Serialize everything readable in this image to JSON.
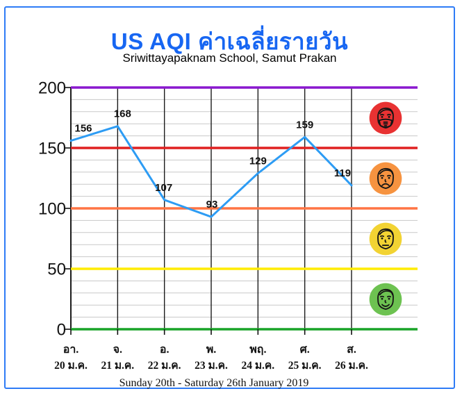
{
  "chart_data": {
    "type": "line",
    "title": "US AQI ค่าเฉลี่ยรายวัน",
    "subtitle": "Sriwittayapaknam School, Samut Prakan",
    "caption": "Sunday 20th - Saturday 26th January 2019",
    "x_day_labels": [
      "อา.",
      "จ.",
      "อ.",
      "พ.",
      "พฤ.",
      "ศ.",
      "ส."
    ],
    "x_date_labels": [
      "20 ม.ค.",
      "21 ม.ค.",
      "22 ม.ค.",
      "23 ม.ค.",
      "24 ม.ค.",
      "25 ม.ค.",
      "26 ม.ค."
    ],
    "values": [
      156,
      168,
      107,
      93,
      129,
      159,
      119
    ],
    "ylim": [
      0,
      200
    ],
    "y_ticks": [
      0,
      50,
      100,
      150,
      200
    ],
    "minor_gridline_step": 10,
    "grid": true,
    "legend_position": "right",
    "line_color": "#2d9cf4",
    "thresholds": [
      {
        "value": 200,
        "color": "#8a18cf",
        "name": "very-unhealthy-threshold-line"
      },
      {
        "value": 150,
        "color": "#e02020",
        "name": "unhealthy-threshold-line"
      },
      {
        "value": 100,
        "color": "#ff7444",
        "name": "unhealthy-sensitive-threshold-line"
      },
      {
        "value": 50,
        "color": "#ffec00",
        "name": "moderate-threshold-line"
      },
      {
        "value": 0,
        "color": "#1aa328",
        "name": "good-threshold-line"
      }
    ],
    "label_dx": [
      18,
      7,
      -1,
      1,
      0,
      0,
      -13
    ]
  },
  "legend_icons": [
    {
      "name": "unhealthy-mask-face-icon",
      "circle_color": "#e83232"
    },
    {
      "name": "unhealthy-sensitive-frown-face-icon",
      "circle_color": "#f69340"
    },
    {
      "name": "moderate-neutral-face-icon",
      "circle_color": "#f2d333"
    },
    {
      "name": "good-smile-face-icon",
      "circle_color": "#6dc251"
    }
  ],
  "colors": {
    "card_border": "#2e7bf6",
    "title_text": "#1766f2",
    "minor_grid": "#c8c8c8",
    "vertical_grid": "#1b1b1b"
  }
}
